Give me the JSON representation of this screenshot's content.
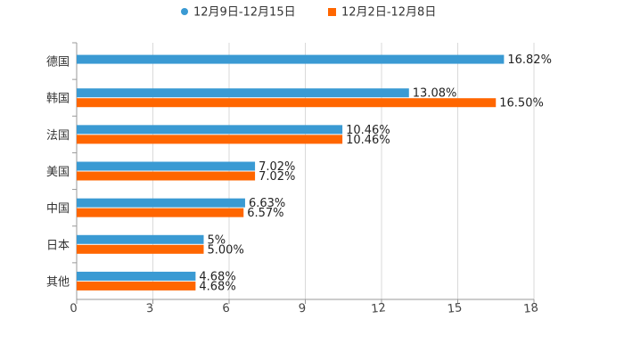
{
  "chart_data": {
    "type": "bar",
    "orientation": "horizontal",
    "categories": [
      "德国",
      "韩国",
      "法国",
      "美国",
      "中国",
      "日本",
      "其他"
    ],
    "series": [
      {
        "name": "12月9日-12月15日",
        "color": "#3a9ad3",
        "values": [
          16.82,
          13.08,
          10.46,
          7.02,
          6.63,
          5,
          4.68
        ],
        "labels": [
          "16.82%",
          "13.08%",
          "10.46%",
          "7.02%",
          "6.63%",
          "5%",
          "4.68%"
        ]
      },
      {
        "name": "12月2日-12月8日",
        "color": "#ff6600",
        "values": [
          null,
          16.5,
          10.46,
          7.02,
          6.57,
          5.0,
          4.68
        ],
        "labels": [
          "",
          "16.50%",
          "10.46%",
          "7.02%",
          "6.57%",
          "5.00%",
          "4.68%"
        ]
      }
    ],
    "xlim": [
      0,
      18
    ],
    "xticks": [
      0,
      3,
      6,
      9,
      12,
      15,
      18
    ],
    "xtick_labels": [
      "0",
      "3",
      "6",
      "9",
      "12",
      "15",
      "18"
    ],
    "grid": true,
    "legend_position": "top-center",
    "title": "",
    "xlabel": "",
    "ylabel": ""
  }
}
